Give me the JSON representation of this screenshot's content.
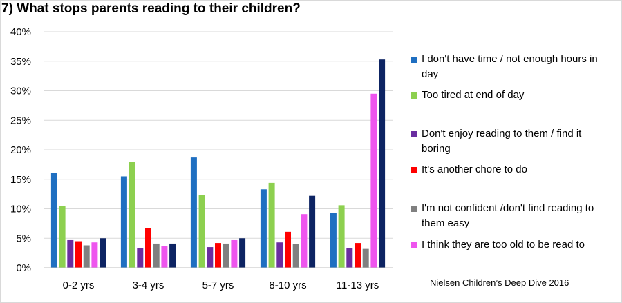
{
  "title": "7) What stops parents reading to their children?",
  "source_note": "Nielsen Children’s Deep Dive 2016",
  "chart_data": {
    "type": "bar",
    "title": "7) What stops parents reading to their children?",
    "categories": [
      "0-2 yrs",
      "3-4 yrs",
      "5-7 yrs",
      "8-10 yrs",
      "11-13 yrs"
    ],
    "yticks": [
      "0%",
      "5%",
      "10%",
      "15%",
      "20%",
      "25%",
      "30%",
      "35%",
      "40%"
    ],
    "ylim": [
      0,
      40
    ],
    "y_unit": "%",
    "grid": true,
    "legend_position": "right",
    "series": [
      {
        "name": "I don't have time / not enough hours in day",
        "color": "#1f6fc1",
        "values": [
          16.1,
          15.5,
          18.7,
          13.3,
          9.3
        ]
      },
      {
        "name": "Too tired at end of day",
        "color": "#8dd04f",
        "values": [
          10.5,
          18.0,
          12.3,
          14.4,
          10.6
        ]
      },
      {
        "name": "Don't enjoy reading to them / find it boring",
        "color": "#6a2ea0",
        "values": [
          4.8,
          3.3,
          3.5,
          4.3,
          3.3
        ]
      },
      {
        "name": "It's another chore to do",
        "color": "#ff0000",
        "values": [
          4.5,
          6.7,
          4.2,
          6.1,
          4.2
        ]
      },
      {
        "name": "I'm not confident /don't find reading to them easy",
        "color": "#808080",
        "values": [
          3.8,
          4.1,
          4.1,
          4.0,
          3.2
        ]
      },
      {
        "name": "I think they are too old to be read to",
        "color": "#ee55ee",
        "values": [
          4.3,
          3.7,
          4.8,
          9.1,
          29.5
        ]
      },
      {
        "name": "",
        "color": "#0d2463",
        "values": [
          5.0,
          4.1,
          5.0,
          12.2,
          35.3
        ]
      }
    ]
  }
}
